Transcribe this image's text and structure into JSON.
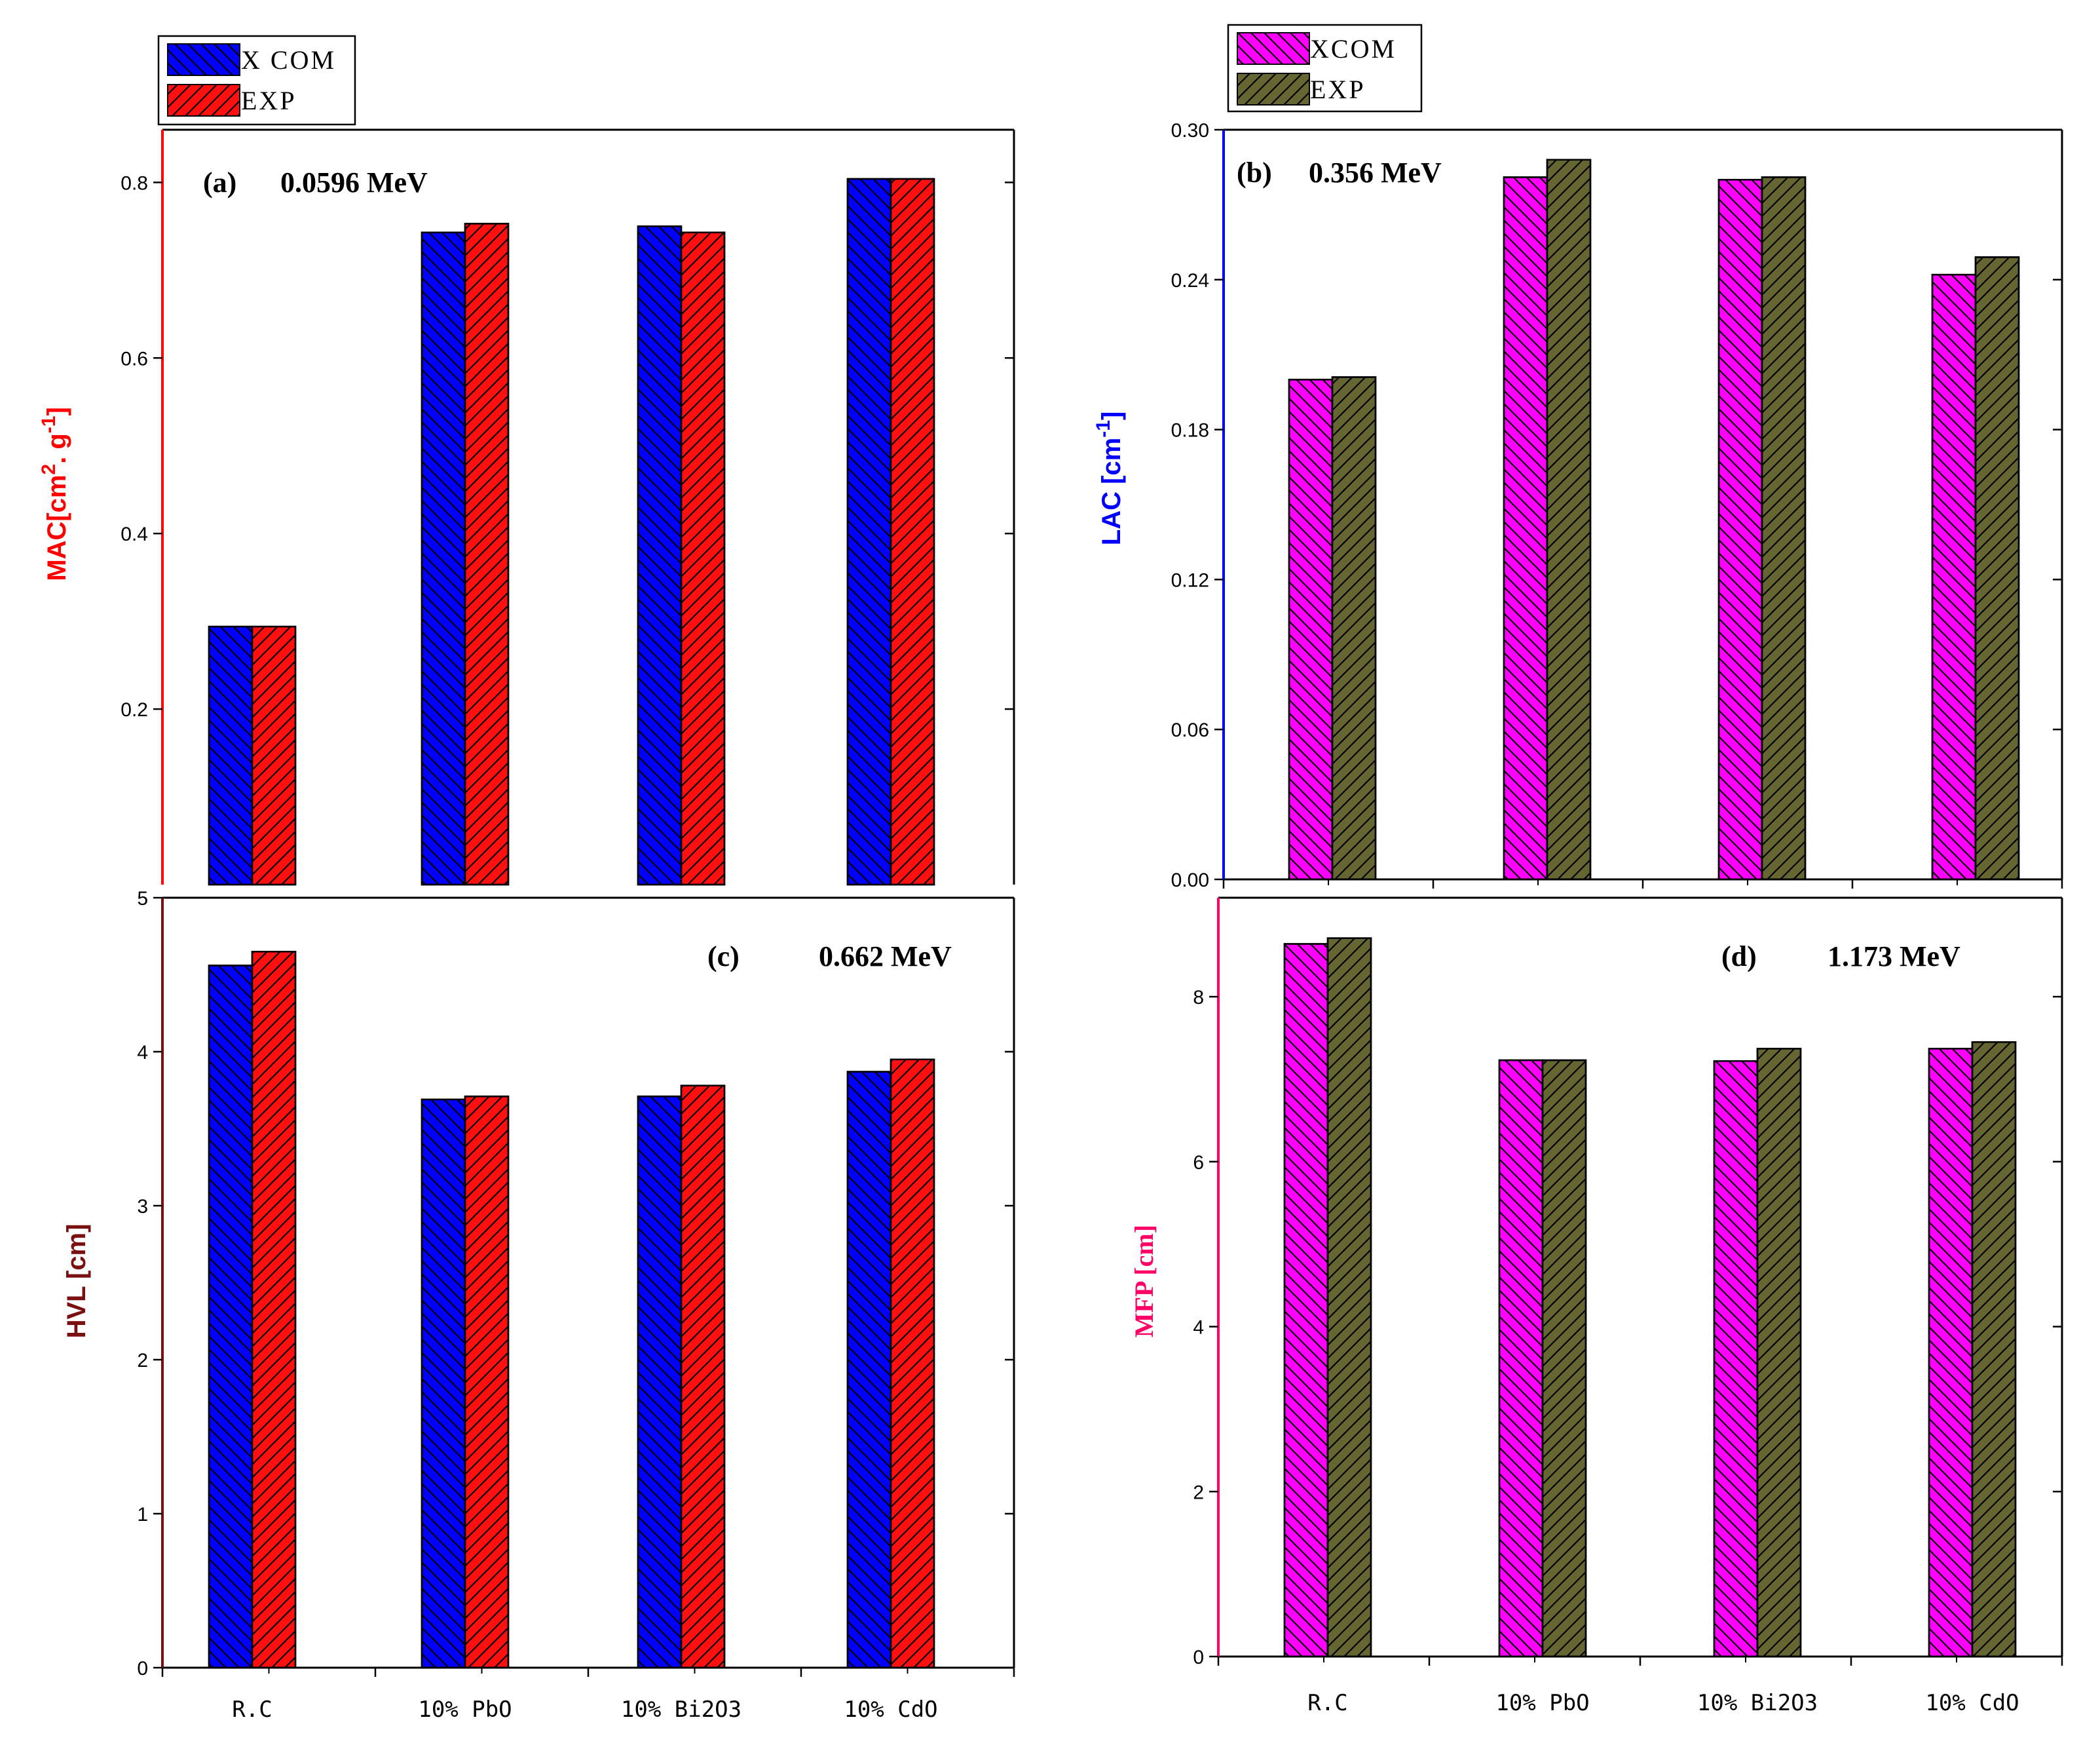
{
  "chart_data": [
    {
      "type": "bar",
      "panel": "a",
      "annotation_label": "(a)",
      "annotation_energy": "0.0596 MeV",
      "ylabel": "MAC[cm2.g-1]",
      "ylabel_parts": [
        "MAC[cm",
        "2",
        ". g",
        "-1",
        "]"
      ],
      "ylabel_color": "#ff0000",
      "axis_color": "#ff0000",
      "ylim": [
        0.0,
        0.86
      ],
      "yticks": [
        0.2,
        0.4,
        0.6,
        0.8
      ],
      "ytick_labels": [
        "0.2",
        "0.4",
        "0.6",
        "0.8"
      ],
      "categories": [
        "R.C",
        "10% PbO",
        "10% Bi2O3",
        "10% CdO"
      ],
      "show_category_labels": false,
      "series": [
        {
          "name": "XCOM",
          "values": [
            0.294,
            0.743,
            0.75,
            0.804
          ],
          "color": "#0000ff"
        },
        {
          "name": "EXP",
          "values": [
            0.294,
            0.753,
            0.743,
            0.804
          ],
          "color": "#ff1010"
        }
      ],
      "legend": {
        "placement": "top-left-outside",
        "entries": [
          "X COM",
          "EXP"
        ]
      }
    },
    {
      "type": "bar",
      "panel": "b",
      "annotation_label": "(b)",
      "annotation_energy": "0.356 MeV",
      "ylabel": "LAC [cm-1]",
      "ylabel_parts": [
        "LAC [cm",
        "-1",
        "]"
      ],
      "ylabel_color": "#0000ff",
      "axis_color": "#0000ff",
      "ylim": [
        0.0,
        0.3
      ],
      "yticks": [
        0.0,
        0.06,
        0.12,
        0.18,
        0.24,
        0.3
      ],
      "ytick_labels": [
        "0.00",
        "0.06",
        "0.12",
        "0.18",
        "0.24",
        "0.30"
      ],
      "categories": [
        "R.C",
        "10% PbO",
        "10% Bi2O3",
        "10% CdO"
      ],
      "show_category_labels": false,
      "series": [
        {
          "name": "XCOM",
          "values": [
            0.2,
            0.281,
            0.28,
            0.242
          ],
          "color": "#ff00ff"
        },
        {
          "name": "EXP",
          "values": [
            0.201,
            0.288,
            0.281,
            0.249
          ],
          "color": "#666633"
        }
      ],
      "legend": {
        "placement": "top-left-outside",
        "entries": [
          "XCOM",
          "EXP"
        ]
      }
    },
    {
      "type": "bar",
      "panel": "c",
      "annotation_label": "(c)",
      "annotation_energy": "0.662 MeV",
      "ylabel": "HVL [cm]",
      "ylabel_color": "#7a1010",
      "axis_color": "#7a1010",
      "ylim": [
        0,
        5
      ],
      "yticks": [
        0,
        1,
        2,
        3,
        4,
        5
      ],
      "ytick_labels": [
        "0",
        "1",
        "2",
        "3",
        "4",
        "5"
      ],
      "categories": [
        "R.C",
        "10% PbO",
        "10% Bi2O3",
        "10% CdO"
      ],
      "show_category_labels": true,
      "series": [
        {
          "name": "XCOM",
          "values": [
            4.56,
            3.69,
            3.71,
            3.87
          ],
          "color": "#0000ff"
        },
        {
          "name": "EXP",
          "values": [
            4.65,
            3.71,
            3.78,
            3.95
          ],
          "color": "#ff1010"
        }
      ]
    },
    {
      "type": "bar",
      "panel": "d",
      "annotation_label": "(d)",
      "annotation_energy": "1.173 MeV",
      "ylabel": "MFP [cm]",
      "ylabel_color": "#ff0066",
      "axis_color": "#ff0066",
      "ylim": [
        0,
        9.2
      ],
      "yticks": [
        0,
        2,
        4,
        6,
        8
      ],
      "ytick_labels": [
        "0",
        "2",
        "4",
        "6",
        "8"
      ],
      "categories": [
        "R.C",
        "10% PbO",
        "10% Bi2O3",
        "10% CdO"
      ],
      "show_category_labels": true,
      "series": [
        {
          "name": "XCOM",
          "values": [
            8.64,
            7.23,
            7.22,
            7.37
          ],
          "color": "#ff00ff"
        },
        {
          "name": "EXP",
          "values": [
            8.71,
            7.23,
            7.37,
            7.45
          ],
          "color": "#666633"
        }
      ]
    }
  ]
}
